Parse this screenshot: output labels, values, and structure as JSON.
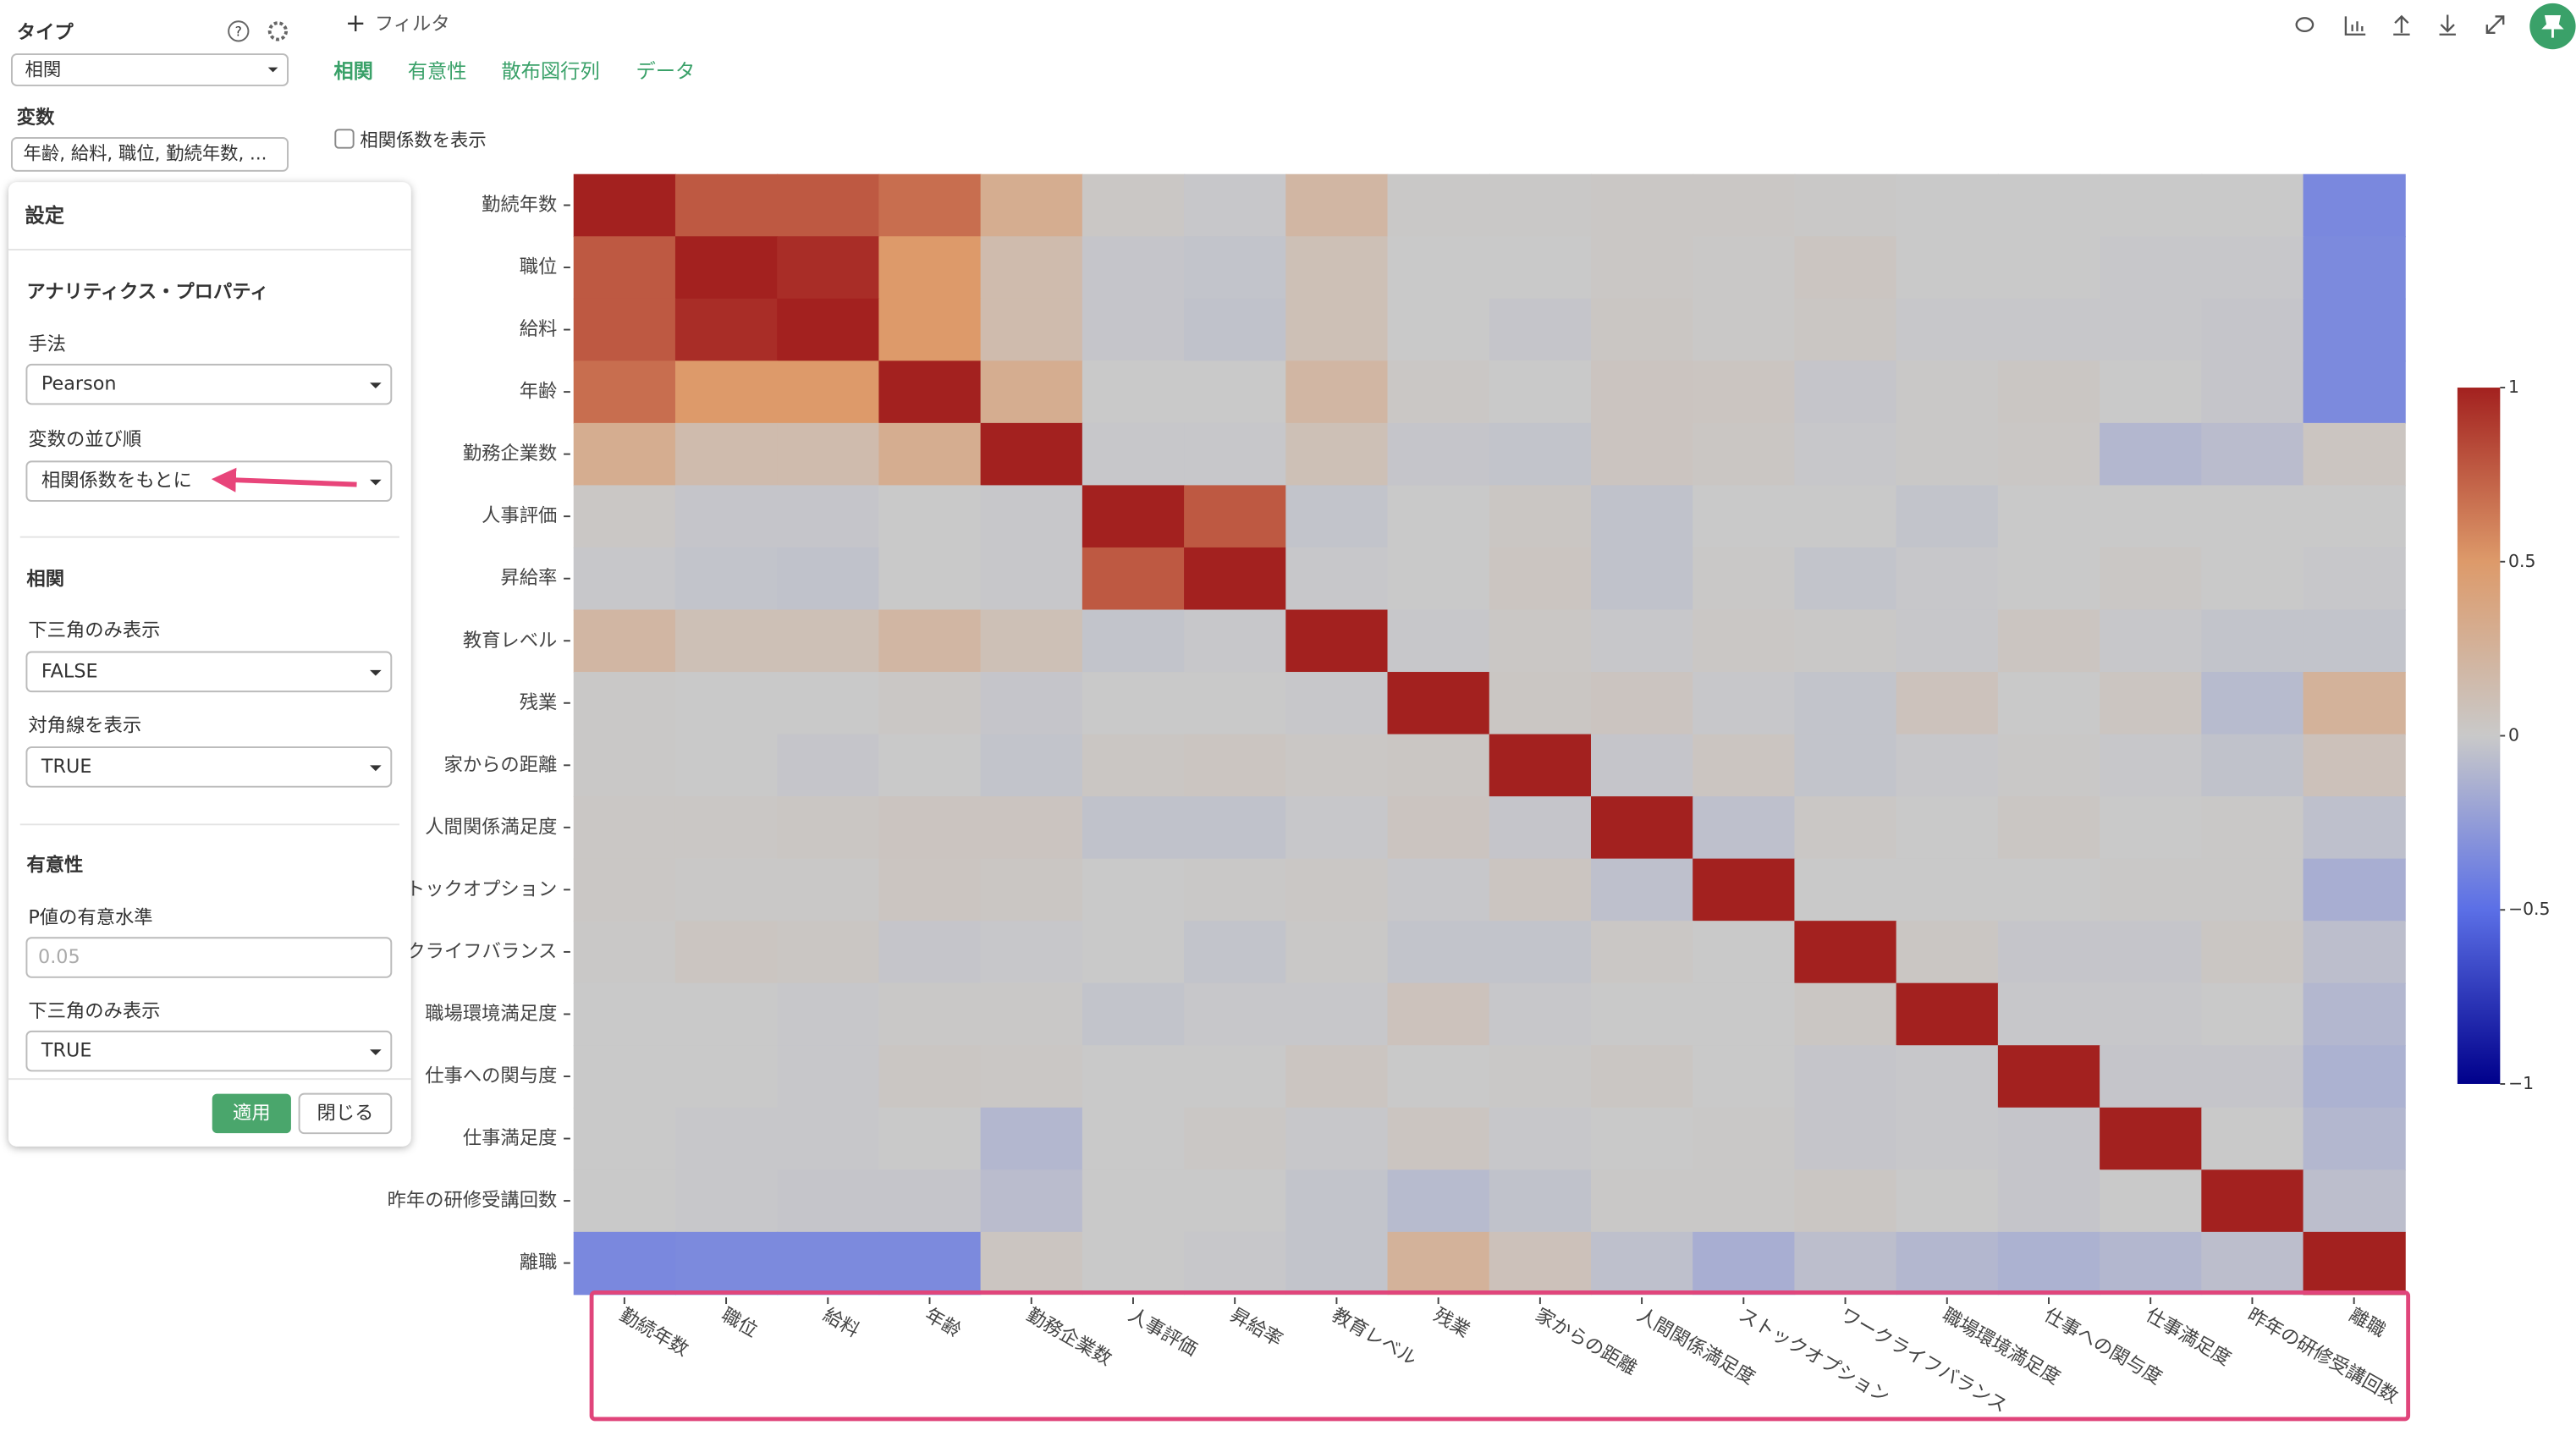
{
  "sidebar": {
    "type_label": "タイプ",
    "type_value": "相関",
    "variables_label": "変数",
    "variables_value": "年齢, 給料, 職位, 勤続年数, ..."
  },
  "settings": {
    "title": "設定",
    "section_properties": "アナリティクス・プロパティ",
    "method_label": "手法",
    "method_value": "Pearson",
    "order_label": "変数の並び順",
    "order_value": "相関係数をもとに",
    "section_correlation": "相関",
    "lower_label": "下三角のみ表示",
    "lower_value": "FALSE",
    "diagonal_label": "対角線を表示",
    "diagonal_value": "TRUE",
    "section_significance": "有意性",
    "p_label": "P値の有意水準",
    "p_placeholder": "0.05",
    "lower2_label": "下三角のみ表示",
    "lower2_value": "TRUE",
    "apply": "適用",
    "close": "閉じる"
  },
  "toolbar": {
    "filter": "フィルタ",
    "tabs": [
      "相関",
      "有意性",
      "散布図行列",
      "データ"
    ],
    "show_coefficients": "相関係数を表示"
  },
  "chart_data": {
    "type": "heatmap",
    "x": [
      "勤続年数",
      "職位",
      "給料",
      "年齢",
      "勤務企業数",
      "人事評価",
      "昇給率",
      "教育レベル",
      "残業",
      "家からの距離",
      "人間関係満足度",
      "ストックオプション",
      "ワークライフバランス",
      "職場環境満足度",
      "仕事への関与度",
      "仕事満足度",
      "昨年の研修受講回数",
      "離職"
    ],
    "y": [
      "勤続年数",
      "職位",
      "給料",
      "年齢",
      "勤務企業数",
      "人事評価",
      "昇給率",
      "教育レベル",
      "残業",
      "家からの距離",
      "人間関係満足度",
      "ストックオプション",
      "ワークライフバランス",
      "職場環境満足度",
      "仕事への関与度",
      "仕事満足度",
      "昨年の研修受講回数",
      "離職"
    ],
    "values": [
      [
        1,
        0.77,
        0.77,
        0.68,
        0.3,
        0.02,
        -0.01,
        0.2,
        0.01,
        0.01,
        0.02,
        0.02,
        0.01,
        0,
        0,
        0,
        0,
        -0.36
      ],
      [
        0.77,
        1,
        0.95,
        0.5,
        0.15,
        -0.02,
        -0.03,
        0.1,
        0,
        0,
        0.02,
        0.01,
        0.04,
        0,
        0,
        -0.01,
        -0.01,
        -0.35
      ],
      [
        0.77,
        0.95,
        1,
        0.5,
        0.15,
        -0.02,
        -0.04,
        0.1,
        0,
        -0.02,
        0.03,
        0.01,
        0.03,
        -0.01,
        -0.01,
        -0.01,
        -0.02,
        -0.35
      ],
      [
        0.68,
        0.5,
        0.5,
        1,
        0.3,
        0,
        0,
        0.2,
        0.02,
        0,
        0.05,
        0.04,
        -0.02,
        0.01,
        0.03,
        0,
        -0.02,
        -0.35
      ],
      [
        0.3,
        0.15,
        0.15,
        0.3,
        1,
        -0.01,
        -0.01,
        0.1,
        -0.02,
        -0.03,
        0.05,
        0.03,
        -0.01,
        0.01,
        0.02,
        -0.1,
        -0.07,
        0.04
      ],
      [
        0.02,
        -0.02,
        -0.02,
        0,
        -0.01,
        1,
        0.77,
        -0.03,
        0,
        0.03,
        -0.04,
        0,
        0,
        -0.03,
        0,
        0,
        0,
        0
      ],
      [
        -0.01,
        -0.03,
        -0.04,
        0,
        -0.01,
        0.77,
        1,
        -0.01,
        0,
        0.04,
        -0.04,
        0.01,
        -0.03,
        -0.01,
        0,
        0.02,
        0,
        -0.01
      ],
      [
        0.2,
        0.1,
        0.1,
        0.2,
        0.1,
        -0.03,
        -0.01,
        1,
        -0.01,
        0.02,
        -0.01,
        0.02,
        0.01,
        -0.01,
        0.04,
        -0.01,
        -0.03,
        -0.03
      ],
      [
        0.01,
        0,
        0,
        0.02,
        -0.02,
        0,
        0,
        -0.01,
        1,
        0.03,
        0.05,
        -0.01,
        -0.03,
        0.07,
        0,
        0.04,
        -0.08,
        0.25
      ],
      [
        0.01,
        0,
        -0.02,
        0,
        -0.03,
        0.03,
        0.04,
        0.02,
        0.03,
        1,
        -0.02,
        0.04,
        -0.03,
        -0.01,
        0.01,
        -0.01,
        -0.04,
        0.08
      ],
      [
        0.02,
        0.02,
        0.03,
        0.05,
        0.05,
        -0.04,
        -0.04,
        -0.01,
        0.05,
        -0.02,
        1,
        -0.05,
        0.02,
        0,
        0.03,
        0,
        0.01,
        -0.05
      ],
      [
        0.02,
        0.01,
        0.01,
        0.04,
        0.03,
        0,
        0.01,
        0.02,
        -0.01,
        0.04,
        -0.05,
        1,
        0,
        0,
        0,
        0.01,
        0.01,
        -0.15
      ],
      [
        0.01,
        0.04,
        0.03,
        -0.02,
        -0.01,
        0,
        -0.03,
        0.01,
        -0.03,
        -0.03,
        0.02,
        0,
        1,
        0.03,
        -0.02,
        -0.02,
        0.03,
        -0.06
      ],
      [
        0,
        0,
        -0.01,
        0.01,
        0.01,
        -0.03,
        -0.01,
        -0.01,
        0.07,
        -0.01,
        0,
        0,
        0.03,
        1,
        -0.01,
        -0.01,
        0,
        -0.1
      ],
      [
        0,
        0,
        -0.01,
        0.03,
        0.02,
        0,
        0,
        0.04,
        0,
        0.01,
        0.03,
        0,
        -0.02,
        -0.01,
        1,
        -0.02,
        -0.02,
        -0.13
      ],
      [
        0,
        -0.01,
        -0.01,
        0,
        -0.1,
        0,
        0.02,
        -0.01,
        0.04,
        -0.01,
        0,
        0.01,
        -0.02,
        -0.01,
        -0.02,
        1,
        0,
        -0.1
      ],
      [
        0,
        -0.01,
        -0.02,
        -0.02,
        -0.07,
        0,
        0,
        -0.03,
        -0.08,
        -0.04,
        0.01,
        0.01,
        0.03,
        0,
        -0.02,
        0,
        1,
        -0.06
      ],
      [
        -0.36,
        -0.35,
        -0.35,
        -0.35,
        0.04,
        0,
        -0.01,
        -0.03,
        0.25,
        0.08,
        -0.05,
        -0.15,
        -0.06,
        -0.1,
        -0.13,
        -0.1,
        -0.06,
        1
      ]
    ],
    "zlim": [
      -1,
      1
    ],
    "zticks": [
      1,
      0.5,
      0,
      {
        "value": -0.5,
        "label": "−0.5"
      },
      {
        "value": -1,
        "label": "−1"
      }
    ],
    "colorscale": [
      "#00008b",
      "#5b6fe6",
      "#c9c9c9",
      "#dd9a6a",
      "#a3211f"
    ]
  }
}
